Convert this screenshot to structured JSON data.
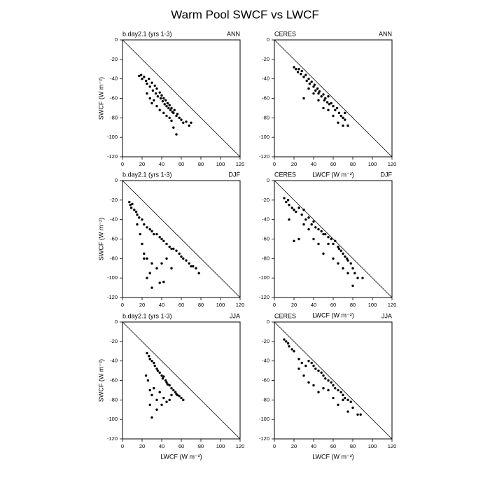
{
  "title": "Warm Pool SWCF vs LWCF",
  "chart_data": [
    {
      "type": "scatter",
      "left_title": "b.day2.1 (yrs 1-3)",
      "right_title": "ANN",
      "ylabel": "SWCF (W m⁻²)",
      "x": [
        17,
        19,
        20,
        22,
        24,
        25,
        27,
        28,
        30,
        31,
        33,
        34,
        35,
        36,
        38,
        39,
        40,
        41,
        42,
        43,
        44,
        45,
        46,
        47,
        48,
        49,
        50,
        51,
        52,
        53,
        55,
        56,
        58,
        60,
        62,
        65,
        68,
        70,
        25,
        28,
        30,
        32,
        35,
        38,
        42,
        45,
        50,
        55,
        48,
        52
      ],
      "values": [
        -37,
        -36,
        -40,
        -38,
        -42,
        -45,
        -40,
        -48,
        -44,
        -52,
        -47,
        -55,
        -50,
        -58,
        -54,
        -60,
        -57,
        -63,
        -60,
        -66,
        -62,
        -68,
        -65,
        -70,
        -67,
        -72,
        -70,
        -74,
        -75,
        -72,
        -78,
        -76,
        -80,
        -82,
        -85,
        -84,
        -88,
        -85,
        -55,
        -60,
        -65,
        -62,
        -68,
        -72,
        -75,
        -78,
        -83,
        -97,
        -80,
        -90
      ],
      "xlim": [
        0,
        120
      ],
      "ylim": [
        -120,
        0
      ],
      "xticks": [
        0,
        20,
        40,
        60,
        80,
        100,
        120
      ],
      "yticks": [
        0,
        -20,
        -40,
        -60,
        -80,
        -100,
        -120
      ],
      "color": "#000000"
    },
    {
      "type": "scatter",
      "left_title": "CERES",
      "right_title": "ANN",
      "xlabel": "LWCF (W m⁻²)",
      "x": [
        20,
        22,
        24,
        25,
        27,
        28,
        30,
        32,
        33,
        35,
        36,
        38,
        40,
        41,
        42,
        44,
        45,
        46,
        48,
        50,
        51,
        52,
        54,
        55,
        56,
        58,
        60,
        62,
        64,
        66,
        68,
        70,
        72,
        75,
        30,
        35,
        40,
        45,
        50,
        55,
        60,
        65,
        70,
        72
      ],
      "values": [
        -28,
        -30,
        -33,
        -30,
        -35,
        -32,
        -38,
        -36,
        -42,
        -40,
        -45,
        -43,
        -48,
        -46,
        -52,
        -50,
        -55,
        -53,
        -58,
        -56,
        -62,
        -60,
        -64,
        -58,
        -66,
        -65,
        -68,
        -72,
        -70,
        -75,
        -78,
        -80,
        -82,
        -88,
        -60,
        -50,
        -55,
        -62,
        -70,
        -72,
        -78,
        -85,
        -88,
        -75
      ],
      "xlim": [
        0,
        120
      ],
      "ylim": [
        -120,
        0
      ],
      "xticks": [
        0,
        20,
        40,
        60,
        80,
        100,
        120
      ],
      "yticks": [
        0,
        -20,
        -40,
        -60,
        -80,
        -100,
        -120
      ],
      "color": "#000000"
    },
    {
      "type": "scatter",
      "left_title": "b.day2.1 (yrs 1-3)",
      "right_title": "DJF",
      "ylabel": "SWCF (W m⁻²)",
      "x": [
        7,
        8,
        9,
        10,
        12,
        14,
        15,
        17,
        20,
        22,
        25,
        28,
        30,
        32,
        35,
        38,
        40,
        42,
        45,
        48,
        50,
        52,
        55,
        58,
        60,
        62,
        65,
        68,
        70,
        72,
        75,
        78,
        15,
        18,
        20,
        22,
        25,
        28,
        30,
        35,
        40,
        45,
        50,
        22,
        25,
        30,
        38,
        42
      ],
      "values": [
        -22,
        -25,
        -28,
        -24,
        -30,
        -32,
        -35,
        -38,
        -40,
        -45,
        -48,
        -50,
        -52,
        -55,
        -55,
        -58,
        -60,
        -62,
        -65,
        -68,
        -70,
        -70,
        -72,
        -75,
        -78,
        -80,
        -82,
        -85,
        -88,
        -88,
        -90,
        -95,
        -45,
        -55,
        -65,
        -75,
        -80,
        -95,
        -85,
        -90,
        -85,
        -80,
        -90,
        -80,
        -100,
        -110,
        -105,
        -104
      ],
      "xlim": [
        0,
        120
      ],
      "ylim": [
        -120,
        0
      ],
      "xticks": [
        0,
        20,
        40,
        60,
        80,
        100,
        120
      ],
      "yticks": [
        0,
        -20,
        -40,
        -60,
        -80,
        -100,
        -120
      ],
      "color": "#000000"
    },
    {
      "type": "scatter",
      "left_title": "CERES",
      "right_title": "DJF",
      "xlabel": "LWCF (W m⁻²)",
      "x": [
        10,
        12,
        14,
        15,
        18,
        20,
        22,
        25,
        28,
        30,
        32,
        35,
        38,
        40,
        42,
        45,
        48,
        50,
        52,
        55,
        58,
        60,
        62,
        65,
        66,
        68,
        70,
        72,
        74,
        75,
        78,
        80,
        82,
        85,
        90,
        15,
        20,
        25,
        30,
        35,
        40,
        45,
        50,
        55,
        60,
        65,
        70,
        75,
        80
      ],
      "values": [
        -18,
        -22,
        -20,
        -25,
        -28,
        -30,
        -32,
        -28,
        -35,
        -30,
        -40,
        -38,
        -45,
        -42,
        -48,
        -50,
        -52,
        -55,
        -55,
        -58,
        -60,
        -65,
        -62,
        -68,
        -70,
        -72,
        -75,
        -78,
        -80,
        -82,
        -85,
        -90,
        -95,
        -100,
        -100,
        -40,
        -62,
        -60,
        -45,
        -50,
        -60,
        -65,
        -75,
        -65,
        -80,
        -85,
        -90,
        -95,
        -108
      ],
      "xlim": [
        0,
        120
      ],
      "ylim": [
        -120,
        0
      ],
      "xticks": [
        0,
        20,
        40,
        60,
        80,
        100,
        120
      ],
      "yticks": [
        0,
        -20,
        -40,
        -60,
        -80,
        -100,
        -120
      ],
      "color": "#000000"
    },
    {
      "type": "scatter",
      "left_title": "b.day2.1 (yrs 1-3)",
      "right_title": "JJA",
      "ylabel": "SWCF (W m⁻²)",
      "xlabel": "LWCF (W m⁻²)",
      "x": [
        25,
        27,
        28,
        30,
        32,
        33,
        35,
        36,
        38,
        40,
        41,
        42,
        44,
        45,
        46,
        48,
        50,
        52,
        54,
        55,
        56,
        58,
        60,
        62,
        24,
        26,
        28,
        30,
        32,
        35,
        38,
        40,
        42,
        45,
        48,
        50,
        28,
        30,
        35
      ],
      "values": [
        -32,
        -35,
        -38,
        -40,
        -42,
        -45,
        -48,
        -50,
        -52,
        -55,
        -58,
        -56,
        -60,
        -62,
        -64,
        -65,
        -68,
        -70,
        -72,
        -74,
        -75,
        -76,
        -78,
        -80,
        -55,
        -60,
        -70,
        -75,
        -68,
        -80,
        -72,
        -85,
        -78,
        -82,
        -80,
        -75,
        -85,
        -98,
        -90
      ],
      "xlim": [
        0,
        120
      ],
      "ylim": [
        -120,
        0
      ],
      "xticks": [
        0,
        20,
        40,
        60,
        80,
        100,
        120
      ],
      "yticks": [
        0,
        -20,
        -40,
        -60,
        -80,
        -100,
        -120
      ],
      "color": "#000000"
    },
    {
      "type": "scatter",
      "left_title": "CERES",
      "right_title": "JJA",
      "xlabel": "LWCF (W m⁻²)",
      "x": [
        10,
        12,
        14,
        15,
        18,
        20,
        25,
        28,
        32,
        35,
        38,
        40,
        42,
        45,
        48,
        50,
        52,
        55,
        58,
        60,
        62,
        65,
        68,
        70,
        72,
        75,
        78,
        80,
        85,
        88,
        25,
        30,
        35,
        40,
        45,
        50,
        55,
        60,
        65,
        70,
        75
      ],
      "values": [
        -18,
        -20,
        -22,
        -25,
        -28,
        -30,
        -38,
        -42,
        -45,
        -40,
        -42,
        -45,
        -48,
        -50,
        -52,
        -55,
        -58,
        -60,
        -62,
        -65,
        -68,
        -70,
        -72,
        -75,
        -78,
        -80,
        -82,
        -88,
        -95,
        -95,
        -48,
        -55,
        -62,
        -65,
        -72,
        -68,
        -70,
        -78,
        -85,
        -80,
        -92
      ],
      "xlim": [
        0,
        120
      ],
      "ylim": [
        -120,
        0
      ],
      "xticks": [
        0,
        20,
        40,
        60,
        80,
        100,
        120
      ],
      "yticks": [
        0,
        -20,
        -40,
        -60,
        -80,
        -100,
        -120
      ],
      "color": "#000000"
    }
  ]
}
